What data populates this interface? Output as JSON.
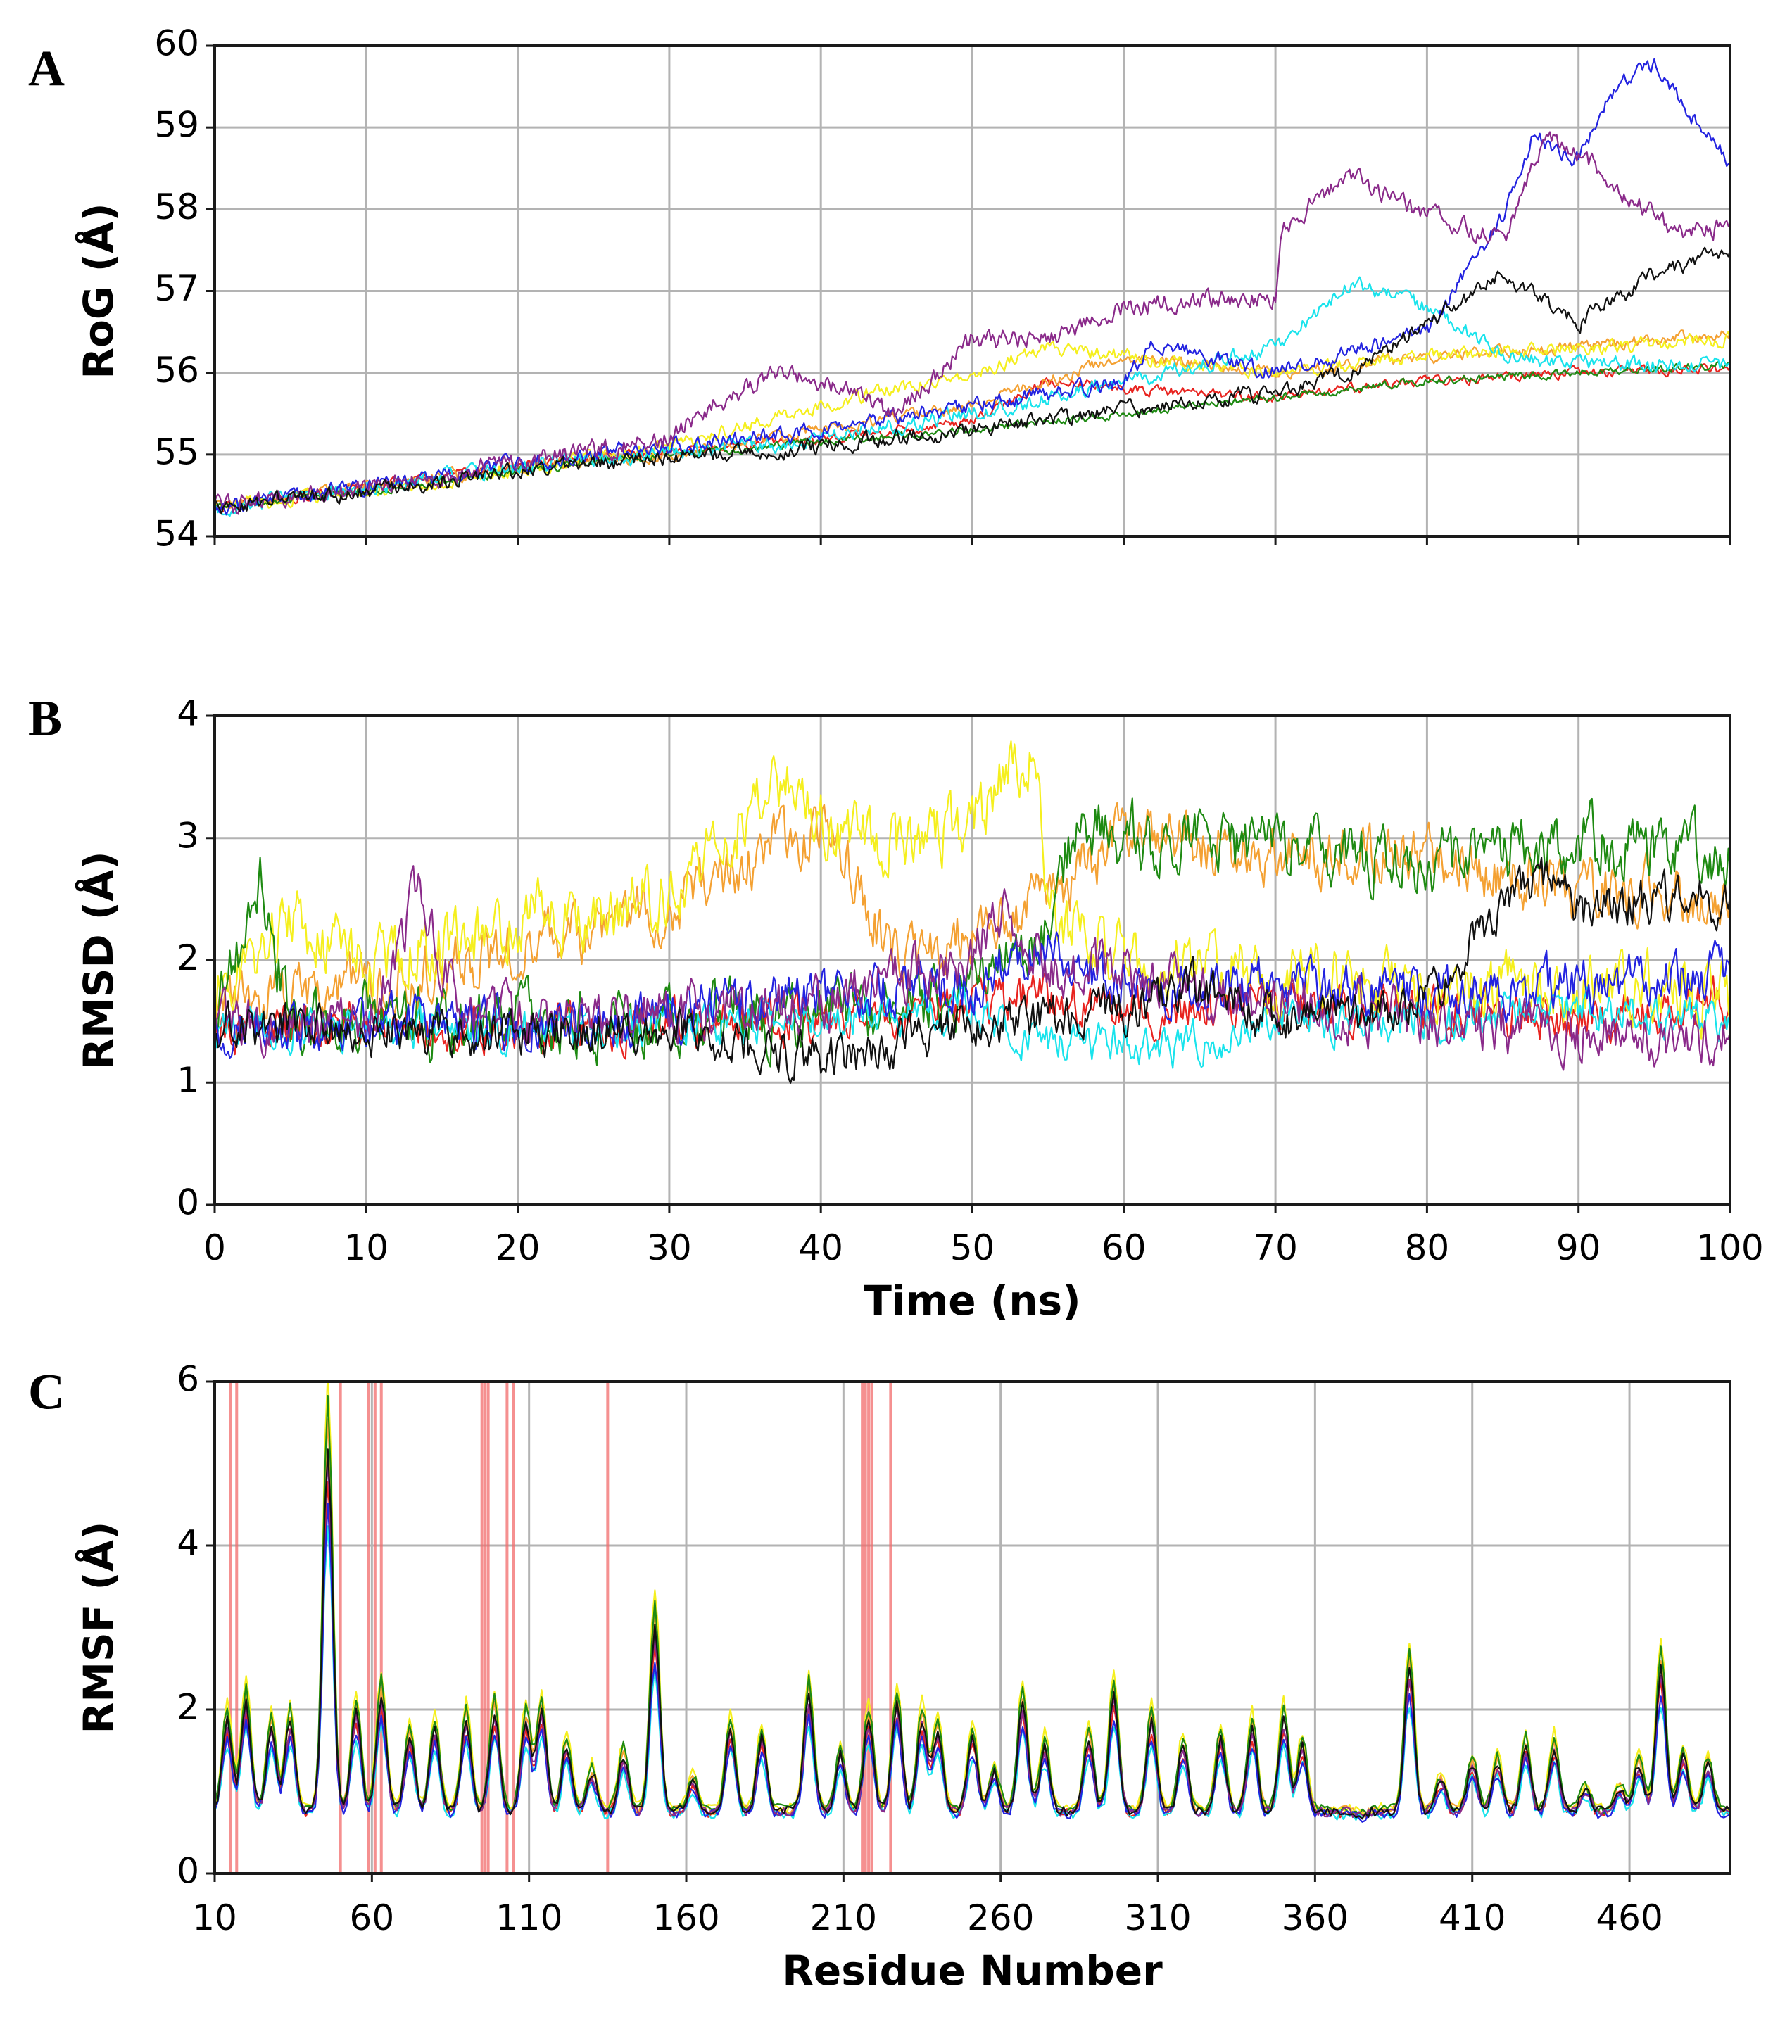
{
  "chart_data": [
    {
      "panel": "A",
      "type": "line",
      "title": "",
      "xlabel": "",
      "ylabel": "RoG (Å)",
      "xlim": [
        0,
        100
      ],
      "ylim": [
        54,
        60
      ],
      "xticks": [
        0,
        10,
        20,
        30,
        40,
        50,
        60,
        70,
        80,
        90,
        100
      ],
      "yticks": [
        54,
        55,
        56,
        57,
        58,
        59,
        60
      ],
      "show_xtick_labels": false,
      "grid": true,
      "series": [
        {
          "name": "red",
          "color": "#e8231f",
          "x": [
            0,
            10,
            20,
            30,
            40,
            50,
            55,
            60,
            70,
            80,
            90,
            100
          ],
          "y": [
            54.35,
            54.6,
            54.85,
            55.05,
            55.2,
            55.4,
            55.9,
            55.8,
            55.7,
            55.9,
            56.0,
            56.05
          ],
          "noise": 0.05
        },
        {
          "name": "orange",
          "color": "#f4a132",
          "x": [
            0,
            10,
            20,
            30,
            40,
            50,
            60,
            70,
            80,
            90,
            95,
            100
          ],
          "y": [
            54.35,
            54.6,
            54.85,
            55.0,
            55.3,
            55.6,
            56.2,
            56.0,
            56.2,
            56.3,
            56.4,
            56.5
          ],
          "noise": 0.06
        },
        {
          "name": "yellow",
          "color": "#f5ef1e",
          "x": [
            0,
            10,
            20,
            30,
            40,
            50,
            55,
            60,
            70,
            80,
            90,
            100
          ],
          "y": [
            54.35,
            54.55,
            54.8,
            55.1,
            55.6,
            56.0,
            56.3,
            56.2,
            56.0,
            56.2,
            56.3,
            56.4
          ],
          "noise": 0.07
        },
        {
          "name": "green",
          "color": "#1e8a12",
          "x": [
            0,
            10,
            20,
            30,
            40,
            50,
            60,
            70,
            80,
            90,
            100
          ],
          "y": [
            54.35,
            54.55,
            54.8,
            55.0,
            55.15,
            55.3,
            55.5,
            55.7,
            55.9,
            56.0,
            56.1
          ],
          "noise": 0.04
        },
        {
          "name": "cyan",
          "color": "#19e3ec",
          "x": [
            0,
            10,
            20,
            30,
            40,
            50,
            60,
            70,
            75,
            80,
            85,
            90,
            100
          ],
          "y": [
            54.35,
            54.6,
            54.85,
            55.0,
            55.2,
            55.5,
            55.9,
            56.3,
            57.1,
            56.8,
            56.2,
            56.1,
            56.1
          ],
          "noise": 0.08
        },
        {
          "name": "blue",
          "color": "#2323e0",
          "x": [
            0,
            10,
            20,
            30,
            40,
            50,
            60,
            62,
            70,
            80,
            85,
            87,
            90,
            92,
            95,
            98,
            100
          ],
          "y": [
            54.35,
            54.6,
            54.9,
            55.1,
            55.3,
            55.6,
            55.9,
            56.35,
            56.0,
            56.5,
            57.9,
            58.9,
            58.6,
            59.4,
            59.8,
            59.0,
            58.6
          ],
          "noise": 0.08
        },
        {
          "name": "purple",
          "color": "#8a2a8a",
          "x": [
            0,
            10,
            20,
            30,
            32,
            37,
            40,
            45,
            50,
            55,
            60,
            65,
            70,
            70.5,
            75,
            79,
            80,
            85,
            88,
            90,
            95,
            97,
            100
          ],
          "y": [
            54.35,
            54.6,
            54.9,
            55.2,
            55.5,
            56.0,
            55.9,
            55.5,
            56.4,
            56.4,
            56.8,
            56.9,
            56.9,
            57.8,
            58.4,
            58.0,
            58.0,
            57.6,
            58.9,
            58.7,
            57.9,
            57.7,
            57.8
          ],
          "noise": 0.1
        },
        {
          "name": "black",
          "color": "#111111",
          "x": [
            0,
            10,
            20,
            30,
            40,
            50,
            60,
            70,
            75,
            80,
            85,
            90,
            95,
            100
          ],
          "y": [
            54.35,
            54.55,
            54.8,
            54.95,
            55.1,
            55.3,
            55.55,
            55.75,
            56.0,
            56.6,
            57.2,
            56.6,
            57.2,
            57.5
          ],
          "noise": 0.08
        }
      ]
    },
    {
      "panel": "B",
      "type": "line",
      "title": "",
      "xlabel": "Time (ns)",
      "ylabel": "RMSD (Å)",
      "xlim": [
        0,
        100
      ],
      "ylim": [
        0,
        4
      ],
      "xticks": [
        0,
        10,
        20,
        30,
        40,
        50,
        60,
        70,
        80,
        90,
        100
      ],
      "yticks": [
        0,
        1,
        2,
        3,
        4
      ],
      "show_xtick_labels": true,
      "grid": true,
      "series": [
        {
          "name": "red",
          "color": "#e8231f",
          "x": [
            0,
            20,
            40,
            55,
            60,
            70,
            80,
            90,
            100
          ],
          "y": [
            1.45,
            1.45,
            1.5,
            1.7,
            1.6,
            1.6,
            1.6,
            1.5,
            1.7
          ],
          "noise": 0.15
        },
        {
          "name": "orange",
          "color": "#f4a132",
          "x": [
            0,
            10,
            20,
            30,
            35,
            40,
            45,
            50,
            55,
            60,
            70,
            80,
            90,
            100
          ],
          "y": [
            1.6,
            1.8,
            2.1,
            2.4,
            2.8,
            3.1,
            2.0,
            2.2,
            2.5,
            3.0,
            2.9,
            2.8,
            2.6,
            2.5
          ],
          "noise": 0.2
        },
        {
          "name": "yellow",
          "color": "#f5ef1e",
          "x": [
            0,
            5,
            10,
            20,
            30,
            35,
            37,
            40,
            45,
            50,
            54,
            55,
            60,
            70,
            80,
            90,
            100
          ],
          "y": [
            1.7,
            2.3,
            2.0,
            2.3,
            2.5,
            3.2,
            3.5,
            3.1,
            3.0,
            3.1,
            3.8,
            2.4,
            2.0,
            1.9,
            1.7,
            1.8,
            1.7
          ],
          "noise": 0.22
        },
        {
          "name": "green",
          "color": "#1e8a12",
          "x": [
            0,
            3,
            5,
            10,
            20,
            30,
            40,
            50,
            55,
            57,
            60,
            70,
            80,
            90,
            100
          ],
          "y": [
            1.5,
            2.6,
            1.5,
            1.5,
            1.5,
            1.5,
            1.55,
            1.7,
            2.3,
            3.2,
            3.0,
            2.9,
            2.8,
            3.0,
            2.8
          ],
          "noise": 0.22
        },
        {
          "name": "cyan",
          "color": "#19e3ec",
          "x": [
            0,
            20,
            40,
            50,
            55,
            60,
            62,
            70,
            80,
            90,
            100
          ],
          "y": [
            1.45,
            1.45,
            1.5,
            1.6,
            1.3,
            1.35,
            1.25,
            1.5,
            1.5,
            1.6,
            1.5
          ],
          "noise": 0.13
        },
        {
          "name": "blue",
          "color": "#2323e0",
          "x": [
            0,
            20,
            30,
            40,
            50,
            55,
            60,
            70,
            80,
            90,
            100
          ],
          "y": [
            1.45,
            1.5,
            1.6,
            1.7,
            1.8,
            2.1,
            1.8,
            1.8,
            1.7,
            1.8,
            1.9
          ],
          "noise": 0.17
        },
        {
          "name": "purple",
          "color": "#8a2a8a",
          "x": [
            0,
            10,
            13.5,
            16,
            20,
            30,
            40,
            45,
            50,
            52,
            55,
            60,
            70,
            80,
            90,
            100
          ],
          "y": [
            1.5,
            1.5,
            2.6,
            1.6,
            1.5,
            1.6,
            1.6,
            1.9,
            2.0,
            2.5,
            1.9,
            1.9,
            1.6,
            1.5,
            1.4,
            1.4
          ],
          "noise": 0.18
        },
        {
          "name": "black",
          "color": "#111111",
          "x": [
            0,
            20,
            30,
            38,
            42,
            50,
            60,
            65,
            70,
            80,
            85,
            88,
            90,
            95,
            100
          ],
          "y": [
            1.45,
            1.4,
            1.45,
            1.2,
            1.2,
            1.5,
            1.6,
            1.8,
            1.5,
            1.6,
            2.5,
            2.7,
            2.4,
            2.5,
            2.5
          ],
          "noise": 0.15
        }
      ]
    },
    {
      "panel": "C",
      "type": "line",
      "title": "",
      "xlabel": "Residue Number",
      "ylabel": "RMSF (Å)",
      "xlim": [
        10,
        492
      ],
      "ylim": [
        0,
        6
      ],
      "xticks": [
        10,
        60,
        110,
        160,
        210,
        260,
        310,
        360,
        410,
        460
      ],
      "yticks": [
        0,
        2,
        4,
        6
      ],
      "show_xtick_labels": true,
      "grid": true,
      "highlights": [
        15,
        17,
        50,
        59,
        61,
        63,
        95,
        96,
        97,
        103,
        105,
        135,
        216,
        217,
        218,
        219,
        225
      ],
      "peaks": [
        [
          14,
          1.8
        ],
        [
          20,
          2.0
        ],
        [
          28,
          1.7
        ],
        [
          34,
          1.8
        ],
        [
          46,
          5.0
        ],
        [
          55,
          1.9
        ],
        [
          63,
          2.1
        ],
        [
          72,
          1.6
        ],
        [
          80,
          1.7
        ],
        [
          90,
          1.8
        ],
        [
          99,
          1.9
        ],
        [
          109,
          1.8
        ],
        [
          114,
          1.9
        ],
        [
          122,
          1.5
        ],
        [
          130,
          1.2
        ],
        [
          140,
          1.4
        ],
        [
          150,
          2.9
        ],
        [
          162,
          1.1
        ],
        [
          174,
          1.7
        ],
        [
          184,
          1.6
        ],
        [
          199,
          2.1
        ],
        [
          209,
          1.4
        ],
        [
          218,
          1.8
        ],
        [
          227,
          2.0
        ],
        [
          235,
          1.8
        ],
        [
          240,
          1.7
        ],
        [
          251,
          1.6
        ],
        [
          258,
          1.2
        ],
        [
          267,
          2.0
        ],
        [
          274,
          1.5
        ],
        [
          288,
          1.6
        ],
        [
          296,
          2.1
        ],
        [
          308,
          1.8
        ],
        [
          318,
          1.5
        ],
        [
          330,
          1.6
        ],
        [
          340,
          1.7
        ],
        [
          350,
          1.8
        ],
        [
          356,
          1.5
        ],
        [
          375,
          0.7
        ],
        [
          390,
          2.4
        ],
        [
          400,
          1.1
        ],
        [
          410,
          1.3
        ],
        [
          418,
          1.3
        ],
        [
          427,
          1.5
        ],
        [
          436,
          1.5
        ],
        [
          446,
          1.0
        ],
        [
          457,
          1.0
        ],
        [
          463,
          1.3
        ],
        [
          470,
          2.4
        ],
        [
          477,
          1.4
        ],
        [
          485,
          1.3
        ]
      ],
      "series": [
        {
          "name": "red",
          "color": "#e8231f",
          "scale": 0.95
        },
        {
          "name": "orange",
          "color": "#f4a132",
          "scale": 1.12
        },
        {
          "name": "yellow",
          "color": "#f5ef1e",
          "scale": 1.25
        },
        {
          "name": "green",
          "color": "#1e8a12",
          "scale": 1.18
        },
        {
          "name": "cyan",
          "color": "#19e3ec",
          "scale": 0.82
        },
        {
          "name": "blue",
          "color": "#2323e0",
          "scale": 0.88
        },
        {
          "name": "purple",
          "color": "#8a2a8a",
          "scale": 1.0
        },
        {
          "name": "black",
          "color": "#111111",
          "scale": 1.05
        }
      ]
    }
  ]
}
